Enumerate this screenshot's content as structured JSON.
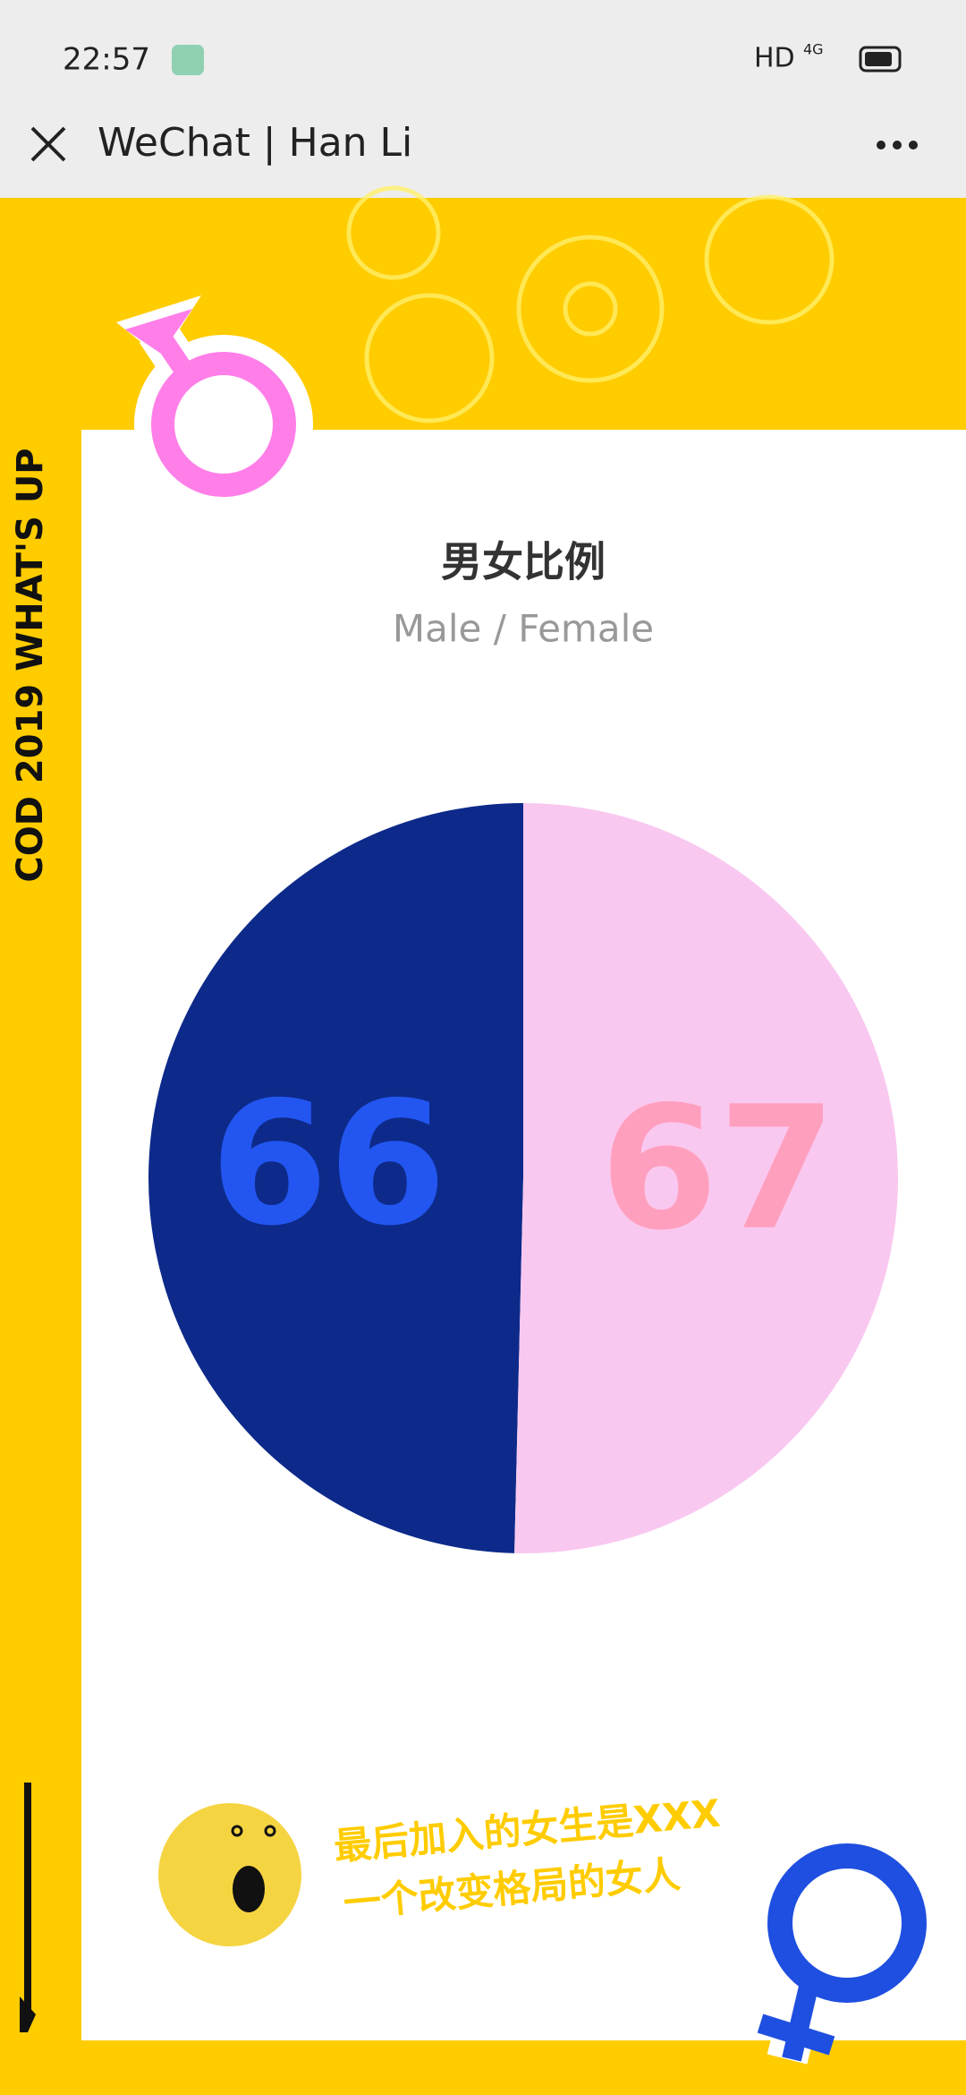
{
  "status_bar": {
    "time": "22:57",
    "network": "HD",
    "signal": "4G"
  },
  "nav": {
    "title": "WeChat | Han Li"
  },
  "side_label": "COD 2019 WHAT'S UP",
  "chart_data": {
    "type": "pie",
    "title": "男女比例",
    "subtitle": "Male / Female",
    "values": [
      66,
      67
    ],
    "colors": [
      "#0d2a8a",
      "#f9c8f0"
    ],
    "label_colors": [
      "#2356f0",
      "#ff9fbe"
    ]
  },
  "caption": {
    "lines": [
      "最后加入的女生是XXX",
      "一个改变格局的女人"
    ]
  }
}
